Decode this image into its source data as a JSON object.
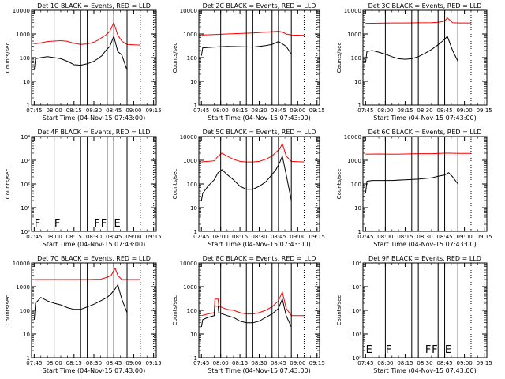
{
  "figure": {
    "x_ticks": [
      "07:45",
      "08:00",
      "08:15",
      "08:30",
      "08:45",
      "09:00",
      "09:15"
    ],
    "x_label": "Start Time (04-Nov-15 07:43:00)",
    "y_label": "Counts/sec",
    "colors": {
      "events": "#000000",
      "lld": "#ff0000"
    }
  },
  "chart_data": [
    {
      "type": "line",
      "title": "Det 1C BLACK = Events, RED = LLD",
      "ylim": [
        1,
        10000
      ],
      "log_y": true,
      "y_ticks": [
        {
          "v": 1,
          "t": "1"
        },
        {
          "v": 10,
          "t": "10"
        },
        {
          "v": 100,
          "t": "100"
        },
        {
          "v": 1000,
          "t": "1000"
        },
        {
          "v": 10000,
          "t": "10000"
        }
      ],
      "flags": [],
      "series": [
        {
          "key": "lld",
          "x": [
            0,
            5,
            10,
            15,
            20,
            25,
            30,
            35,
            40,
            45,
            48,
            51,
            54,
            57,
            60,
            63,
            66,
            70,
            75,
            80
          ],
          "y": [
            380,
            420,
            480,
            500,
            520,
            490,
            400,
            360,
            380,
            450,
            550,
            700,
            900,
            1300,
            3000,
            900,
            500,
            360,
            350,
            340
          ]
        },
        {
          "key": "events",
          "x": [
            0,
            1,
            5,
            10,
            15,
            20,
            25,
            30,
            35,
            40,
            45,
            48,
            51,
            54,
            57,
            60,
            63,
            66,
            70
          ],
          "y": [
            30,
            90,
            100,
            110,
            100,
            90,
            70,
            50,
            48,
            55,
            70,
            90,
            120,
            200,
            300,
            800,
            180,
            130,
            30
          ]
        }
      ]
    },
    {
      "type": "line",
      "title": "Det 2C BLACK = Events, RED = LLD",
      "ylim": [
        1,
        10000
      ],
      "log_y": true,
      "y_ticks": [
        {
          "v": 1,
          "t": "1"
        },
        {
          "v": 10,
          "t": "10"
        },
        {
          "v": 100,
          "t": "100"
        },
        {
          "v": 1000,
          "t": "1000"
        },
        {
          "v": 10000,
          "t": "10000"
        }
      ],
      "flags": [],
      "series": [
        {
          "key": "lld",
          "x": [
            0,
            10,
            20,
            30,
            40,
            45,
            50,
            55,
            60,
            63,
            66,
            70,
            80
          ],
          "y": [
            900,
            950,
            1000,
            1050,
            1100,
            1150,
            1200,
            1250,
            1300,
            1200,
            1000,
            900,
            880
          ]
        },
        {
          "key": "events",
          "x": [
            0,
            1,
            10,
            20,
            30,
            40,
            45,
            50,
            55,
            60,
            63,
            66,
            70
          ],
          "y": [
            120,
            260,
            280,
            300,
            290,
            280,
            300,
            320,
            360,
            480,
            380,
            300,
            140
          ]
        }
      ]
    },
    {
      "type": "line",
      "title": "Det 3C BLACK = Events, RED = LLD",
      "ylim": [
        1,
        10000
      ],
      "log_y": true,
      "y_ticks": [
        {
          "v": 1,
          "t": "1"
        },
        {
          "v": 10,
          "t": "10"
        },
        {
          "v": 100,
          "t": "100"
        },
        {
          "v": 1000,
          "t": "1000"
        },
        {
          "v": 10000,
          "t": "10000"
        }
      ],
      "flags": [],
      "series": [
        {
          "key": "lld",
          "x": [
            0,
            10,
            20,
            30,
            40,
            50,
            55,
            60,
            62,
            66,
            70,
            80
          ],
          "y": [
            2800,
            2850,
            2900,
            2900,
            2950,
            3000,
            3100,
            3500,
            4800,
            3000,
            2900,
            2900
          ]
        },
        {
          "key": "events",
          "x": [
            0,
            1,
            5,
            10,
            15,
            20,
            25,
            30,
            35,
            40,
            45,
            50,
            55,
            60,
            62,
            66,
            70
          ],
          "y": [
            60,
            180,
            200,
            170,
            140,
            110,
            90,
            85,
            90,
            110,
            150,
            220,
            350,
            600,
            800,
            200,
            70
          ]
        }
      ]
    },
    {
      "type": "line",
      "title": "Det 4F BLACK = Events, RED = LLD",
      "ylim": [
        1,
        10000
      ],
      "log_y": true,
      "y_ticks": [
        {
          "v": 1,
          "t": "10⁰"
        },
        {
          "v": 10,
          "t": "10¹"
        },
        {
          "v": 100,
          "t": "10²"
        },
        {
          "v": 1000,
          "t": "10³"
        },
        {
          "v": 10000,
          "t": "10⁴"
        }
      ],
      "flags": [
        {
          "x": 0.2,
          "label": "F"
        },
        {
          "x": 15.2,
          "label": "F"
        },
        {
          "x": 45.2,
          "label": "F"
        },
        {
          "x": 50.2,
          "label": "F"
        },
        {
          "x": 60.2,
          "label": "E"
        }
      ],
      "series": []
    },
    {
      "type": "line",
      "title": "Det 5C BLACK = Events, RED = LLD",
      "ylim": [
        1,
        10000
      ],
      "log_y": true,
      "y_ticks": [
        {
          "v": 1,
          "t": "1"
        },
        {
          "v": 10,
          "t": "10"
        },
        {
          "v": 100,
          "t": "100"
        },
        {
          "v": 1000,
          "t": "1000"
        },
        {
          "v": 10000,
          "t": "10000"
        }
      ],
      "flags": [],
      "series": [
        {
          "key": "lld",
          "x": [
            0,
            5,
            10,
            13,
            16,
            20,
            25,
            30,
            35,
            40,
            45,
            50,
            55,
            58,
            61,
            63,
            66,
            70,
            80
          ],
          "y": [
            850,
            900,
            950,
            1500,
            2000,
            1500,
            1100,
            900,
            850,
            850,
            900,
            1100,
            1500,
            2200,
            3000,
            5000,
            1500,
            900,
            850
          ]
        },
        {
          "key": "events",
          "x": [
            0,
            1,
            5,
            10,
            13,
            16,
            20,
            25,
            30,
            35,
            40,
            45,
            50,
            55,
            58,
            61,
            63,
            66,
            70
          ],
          "y": [
            20,
            40,
            80,
            150,
            300,
            400,
            250,
            150,
            80,
            60,
            60,
            80,
            120,
            250,
            400,
            800,
            1500,
            250,
            20
          ]
        }
      ]
    },
    {
      "type": "line",
      "title": "Det 6C BLACK = Events, RED = LLD",
      "ylim": [
        1,
        10000
      ],
      "log_y": true,
      "y_ticks": [
        {
          "v": 1,
          "t": "1"
        },
        {
          "v": 10,
          "t": "10"
        },
        {
          "v": 100,
          "t": "100"
        },
        {
          "v": 1000,
          "t": "1000"
        },
        {
          "v": 10000,
          "t": "10000"
        }
      ],
      "flags": [],
      "series": [
        {
          "key": "lld",
          "x": [
            0,
            10,
            20,
            30,
            40,
            50,
            60,
            65,
            70,
            80
          ],
          "y": [
            1800,
            1850,
            1800,
            1850,
            1900,
            1900,
            2000,
            2000,
            1950,
            1950
          ]
        },
        {
          "key": "events",
          "x": [
            0,
            1,
            5,
            10,
            20,
            30,
            40,
            50,
            55,
            60,
            63,
            66,
            70
          ],
          "y": [
            40,
            130,
            140,
            140,
            140,
            150,
            160,
            180,
            210,
            240,
            300,
            200,
            100
          ]
        }
      ]
    },
    {
      "type": "line",
      "title": "Det 7C BLACK = Events, RED = LLD",
      "ylim": [
        1,
        10000
      ],
      "log_y": true,
      "y_ticks": [
        {
          "v": 1,
          "t": "1"
        },
        {
          "v": 10,
          "t": "10"
        },
        {
          "v": 100,
          "t": "100"
        },
        {
          "v": 1000,
          "t": "1000"
        },
        {
          "v": 10000,
          "t": "10000"
        }
      ],
      "flags": [],
      "series": [
        {
          "key": "lld",
          "x": [
            0,
            10,
            20,
            30,
            40,
            50,
            55,
            58,
            61,
            63,
            66,
            70,
            80
          ],
          "y": [
            2000,
            2000,
            2000,
            2000,
            2000,
            2050,
            2500,
            3000,
            6000,
            3000,
            2000,
            2000,
            2000
          ]
        },
        {
          "key": "events",
          "x": [
            0,
            1,
            5,
            10,
            15,
            20,
            25,
            30,
            35,
            40,
            45,
            50,
            55,
            58,
            61,
            63,
            66,
            70
          ],
          "y": [
            40,
            200,
            350,
            250,
            200,
            170,
            130,
            110,
            110,
            140,
            180,
            250,
            350,
            500,
            800,
            1200,
            300,
            80
          ]
        }
      ]
    },
    {
      "type": "line",
      "title": "Det 8C BLACK = Events, RED = LLD",
      "ylim": [
        1,
        10000
      ],
      "log_y": true,
      "y_ticks": [
        {
          "v": 1,
          "t": "1"
        },
        {
          "v": 10,
          "t": "10"
        },
        {
          "v": 100,
          "t": "100"
        },
        {
          "v": 1000,
          "t": "1000"
        },
        {
          "v": 10000,
          "t": "10000"
        }
      ],
      "flags": [],
      "series": [
        {
          "key": "lld",
          "x": [
            0,
            5,
            10,
            10.5,
            13,
            13.5,
            20,
            25,
            30,
            35,
            40,
            45,
            50,
            55,
            60,
            63,
            66,
            70,
            80
          ],
          "y": [
            60,
            70,
            80,
            300,
            300,
            150,
            110,
            100,
            80,
            70,
            70,
            80,
            100,
            140,
            250,
            600,
            120,
            60,
            60
          ]
        },
        {
          "key": "events",
          "x": [
            0,
            1,
            5,
            10,
            10.5,
            13,
            13.5,
            20,
            25,
            30,
            35,
            40,
            45,
            50,
            55,
            60,
            63,
            66,
            70
          ],
          "y": [
            20,
            40,
            50,
            60,
            150,
            150,
            80,
            60,
            50,
            35,
            30,
            30,
            35,
            50,
            70,
            120,
            300,
            60,
            20
          ]
        }
      ]
    },
    {
      "type": "line",
      "title": "Det 9F BLACK = Events, RED = LLD",
      "ylim": [
        1,
        10000
      ],
      "log_y": true,
      "y_ticks": [
        {
          "v": 1,
          "t": "10⁰"
        },
        {
          "v": 10,
          "t": "10¹"
        },
        {
          "v": 100,
          "t": "10²"
        },
        {
          "v": 1000,
          "t": "10³"
        },
        {
          "v": 10000,
          "t": "10⁴"
        }
      ],
      "flags": [
        {
          "x": 0.2,
          "label": "E"
        },
        {
          "x": 15.2,
          "label": "F"
        },
        {
          "x": 45.2,
          "label": "F"
        },
        {
          "x": 50.2,
          "label": "F"
        },
        {
          "x": 60.2,
          "label": "E"
        }
      ],
      "series": []
    }
  ]
}
